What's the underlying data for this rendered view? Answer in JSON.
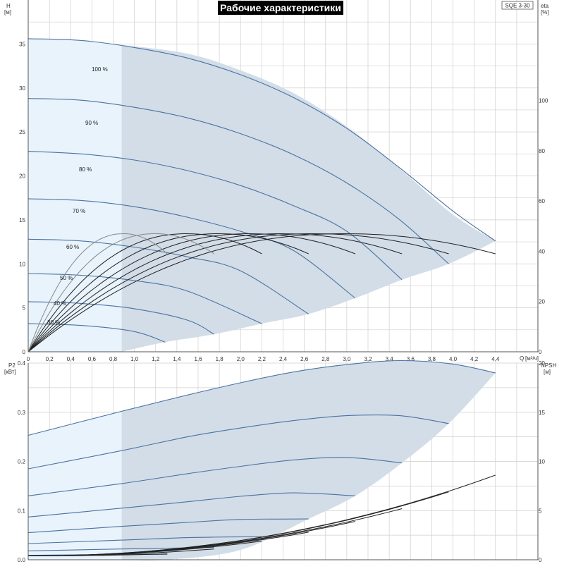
{
  "title": "Рабочие характеристики",
  "model": "SQE 3-30",
  "colors": {
    "envelope_fill": "#d2dde8",
    "light_fill": "#e8f3fc",
    "curve_blue": "#4b72a0",
    "curve_black": "#222222",
    "curve_gray": "#888888",
    "grid": "#cfcfcf",
    "axis": "#555555",
    "title_bg": "#000000"
  },
  "chart_data": [
    {
      "type": "line",
      "name": "head",
      "ylabel": "H",
      "yunit": "[м]",
      "xlabel": "Q",
      "xunit": "[м³/ч]",
      "y2label": "eta",
      "y2unit": "[%]",
      "xlim": [
        0,
        4.8
      ],
      "ylim": [
        0,
        40
      ],
      "y2lim": [
        0,
        140
      ],
      "x_ticks": [
        "0",
        "0,2",
        "0,4",
        "0,6",
        "0,8",
        "1,0",
        "1,2",
        "1,4",
        "1,6",
        "1,8",
        "2,0",
        "2,2",
        "2,4",
        "2,6",
        "2,8",
        "3,0",
        "3,2",
        "3,4",
        "3,6",
        "3,8",
        "4,0",
        "4,2",
        "4,4"
      ],
      "y_ticks": [
        "0",
        "5",
        "10",
        "15",
        "20",
        "25",
        "30",
        "35"
      ],
      "y2_ticks": [
        "0",
        "20",
        "40",
        "60",
        "80",
        "100"
      ],
      "light_region_xmax": 0.88,
      "envelope_top": [
        [
          0.88,
          34.9
        ],
        [
          1.5,
          33.9
        ],
        [
          2.0,
          32.0
        ],
        [
          2.5,
          29.4
        ],
        [
          3.0,
          25.6
        ],
        [
          3.5,
          20.8
        ],
        [
          4.0,
          15.6
        ],
        [
          4.4,
          12.6
        ]
      ],
      "envelope_bottom": [
        [
          0.88,
          0.0
        ],
        [
          1.29,
          1.1
        ],
        [
          1.75,
          2.0
        ],
        [
          2.2,
          3.2
        ],
        [
          2.64,
          4.3
        ],
        [
          3.08,
          6.1
        ],
        [
          3.52,
          8.2
        ],
        [
          3.96,
          10.0
        ],
        [
          4.4,
          12.6
        ]
      ],
      "speed_labels": [
        "100 %",
        "90 %",
        "80 %",
        "70 %",
        "60 %",
        "50 %",
        "40 %",
        "30 %"
      ],
      "series": [
        {
          "label": "100 %",
          "points": [
            [
              0,
              35.6
            ],
            [
              0.5,
              35.4
            ],
            [
              1.0,
              34.6
            ],
            [
              1.5,
              33.4
            ],
            [
              2.0,
              31.5
            ],
            [
              2.5,
              28.9
            ],
            [
              3.0,
              25.4
            ],
            [
              3.5,
              20.9
            ],
            [
              4.0,
              16.0
            ],
            [
              4.4,
              12.6
            ]
          ]
        },
        {
          "label": "90 %",
          "points": [
            [
              0,
              28.8
            ],
            [
              0.5,
              28.6
            ],
            [
              1.0,
              27.8
            ],
            [
              1.5,
              26.6
            ],
            [
              2.0,
              24.8
            ],
            [
              2.5,
              22.4
            ],
            [
              3.0,
              19.2
            ],
            [
              3.5,
              15.0
            ],
            [
              3.96,
              10.0
            ]
          ]
        },
        {
          "label": "80 %",
          "points": [
            [
              0,
              22.8
            ],
            [
              0.5,
              22.5
            ],
            [
              1.0,
              21.8
            ],
            [
              1.5,
              20.6
            ],
            [
              2.0,
              18.9
            ],
            [
              2.5,
              16.6
            ],
            [
              3.0,
              13.7
            ],
            [
              3.52,
              8.2
            ]
          ]
        },
        {
          "label": "70 %",
          "points": [
            [
              0,
              17.4
            ],
            [
              0.5,
              17.2
            ],
            [
              1.0,
              16.5
            ],
            [
              1.5,
              15.3
            ],
            [
              2.0,
              13.7
            ],
            [
              2.5,
              11.5
            ],
            [
              3.08,
              6.1
            ]
          ]
        },
        {
          "label": "60 %",
          "points": [
            [
              0,
              12.8
            ],
            [
              0.5,
              12.6
            ],
            [
              1.0,
              11.9
            ],
            [
              1.5,
              10.8
            ],
            [
              2.0,
              9.2
            ],
            [
              2.64,
              4.3
            ]
          ]
        },
        {
          "label": "50 %",
          "points": [
            [
              0,
              8.9
            ],
            [
              0.5,
              8.7
            ],
            [
              1.0,
              8.1
            ],
            [
              1.5,
              6.9
            ],
            [
              2.2,
              3.2
            ]
          ]
        },
        {
          "label": "40 %",
          "points": [
            [
              0,
              5.7
            ],
            [
              0.5,
              5.5
            ],
            [
              1.0,
              4.9
            ],
            [
              1.5,
              3.6
            ],
            [
              1.75,
              2.0
            ]
          ]
        },
        {
          "label": "30 %",
          "points": [
            [
              0,
              3.2
            ],
            [
              0.5,
              3.0
            ],
            [
              1.0,
              2.3
            ],
            [
              1.29,
              1.1
            ]
          ]
        }
      ],
      "eta_curves": [
        {
          "qmax": 4.4,
          "peak_q": 3.0
        },
        {
          "qmax": 3.96,
          "peak_q": 2.7
        },
        {
          "qmax": 3.52,
          "peak_q": 2.4
        },
        {
          "qmax": 3.08,
          "peak_q": 2.1
        },
        {
          "qmax": 2.64,
          "peak_q": 1.8
        },
        {
          "qmax": 2.2,
          "peak_q": 1.5
        },
        {
          "qmax": 1.75,
          "peak_q": 1.2
        },
        {
          "qmax": 1.31,
          "peak_q": 0.9
        }
      ],
      "eta_peak_percent": 47,
      "eta_end_percent": 39
    },
    {
      "type": "line",
      "name": "power",
      "ylabel": "P2",
      "yunit": "[кВт]",
      "y2label": "NPSH",
      "y2unit": "[м]",
      "xlim": [
        0,
        4.8
      ],
      "ylim": [
        0,
        0.4
      ],
      "y2lim": [
        0,
        20
      ],
      "y_ticks": [
        "0.0",
        "0.1",
        "0.2",
        "0.3",
        "0.4"
      ],
      "y2_ticks": [
        "0",
        "5",
        "10",
        "15",
        "20"
      ],
      "envelope_top": [
        [
          0.88,
          0.303
        ],
        [
          1.5,
          0.335
        ],
        [
          2.0,
          0.36
        ],
        [
          2.5,
          0.382
        ],
        [
          3.0,
          0.397
        ],
        [
          3.5,
          0.405
        ],
        [
          4.0,
          0.398
        ],
        [
          4.4,
          0.38
        ]
      ],
      "envelope_bottom": [
        [
          0.88,
          0.0
        ],
        [
          1.3,
          0.0
        ],
        [
          2.0,
          0.02
        ],
        [
          2.64,
          0.083
        ],
        [
          3.08,
          0.13
        ],
        [
          3.52,
          0.197
        ],
        [
          3.96,
          0.277
        ],
        [
          4.4,
          0.38
        ]
      ],
      "series": [
        {
          "label": "100 %",
          "points": [
            [
              0,
              0.253
            ],
            [
              0.88,
              0.302
            ],
            [
              1.5,
              0.335
            ],
            [
              2.0,
              0.36
            ],
            [
              2.5,
              0.382
            ],
            [
              3.0,
              0.397
            ],
            [
              3.5,
              0.405
            ],
            [
              4.0,
              0.398
            ],
            [
              4.4,
              0.38
            ]
          ]
        },
        {
          "label": "90 %",
          "points": [
            [
              0,
              0.185
            ],
            [
              0.88,
              0.222
            ],
            [
              1.5,
              0.25
            ],
            [
              2.0,
              0.268
            ],
            [
              2.5,
              0.283
            ],
            [
              3.0,
              0.293
            ],
            [
              3.5,
              0.293
            ],
            [
              3.96,
              0.277
            ]
          ]
        },
        {
          "label": "80 %",
          "points": [
            [
              0,
              0.13
            ],
            [
              0.88,
              0.155
            ],
            [
              1.5,
              0.175
            ],
            [
              2.0,
              0.19
            ],
            [
              2.5,
              0.203
            ],
            [
              3.0,
              0.208
            ],
            [
              3.52,
              0.197
            ]
          ]
        },
        {
          "label": "70 %",
          "points": [
            [
              0,
              0.087
            ],
            [
              0.88,
              0.105
            ],
            [
              1.5,
              0.118
            ],
            [
              2.0,
              0.129
            ],
            [
              2.5,
              0.136
            ],
            [
              3.08,
              0.13
            ]
          ]
        },
        {
          "label": "60 %",
          "points": [
            [
              0,
              0.055
            ],
            [
              0.88,
              0.068
            ],
            [
              1.5,
              0.076
            ],
            [
              2.0,
              0.082
            ],
            [
              2.64,
              0.083
            ]
          ]
        },
        {
          "label": "50 %",
          "points": [
            [
              0,
              0.033
            ],
            [
              0.88,
              0.04
            ],
            [
              1.5,
              0.045
            ],
            [
              2.2,
              0.047
            ]
          ]
        },
        {
          "label": "40 %",
          "points": [
            [
              0,
              0.018
            ],
            [
              0.88,
              0.022
            ],
            [
              1.75,
              0.025
            ]
          ]
        },
        {
          "label": "30 %",
          "points": [
            [
              0,
              0.009
            ],
            [
              0.88,
              0.011
            ],
            [
              1.31,
              0.011
            ]
          ]
        }
      ],
      "npsh_curves": [
        {
          "qmax": 4.4,
          "end_m": 8.6
        },
        {
          "qmax": 3.96,
          "end_m": 6.9
        },
        {
          "qmax": 3.52,
          "end_m": 5.2
        },
        {
          "qmax": 3.08,
          "end_m": 3.9
        },
        {
          "qmax": 2.64,
          "end_m": 2.8
        },
        {
          "qmax": 2.2,
          "end_m": 1.9
        },
        {
          "qmax": 1.75,
          "end_m": 1.1
        },
        {
          "qmax": 1.31,
          "end_m": 0.6
        }
      ]
    }
  ]
}
